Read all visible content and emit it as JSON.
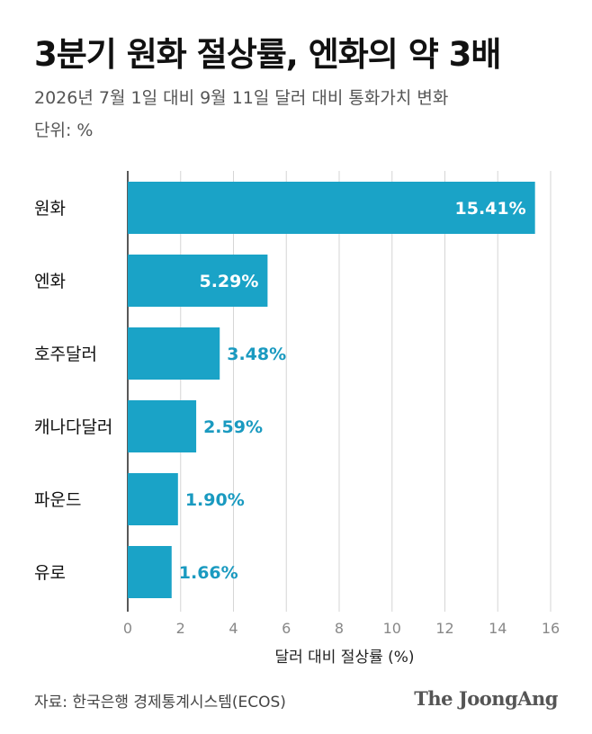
{
  "header": {
    "title": "3분기 원화 절상률, 엔화의 약 3배",
    "subtitle": "2026년 7월 1일 대비 9월 11일 달러 대비 통화가치 변화",
    "unit": "단위: %"
  },
  "chart_data": {
    "type": "bar",
    "orientation": "horizontal",
    "categories": [
      "원화",
      "엔화",
      "호주달러",
      "캐나다달러",
      "파운드",
      "유로"
    ],
    "values": [
      15.41,
      5.29,
      3.48,
      2.59,
      1.9,
      1.66
    ],
    "value_labels": [
      "15.41%",
      "5.29%",
      "3.48%",
      "2.59%",
      "1.90%",
      "1.66%"
    ],
    "xlabel": "달러 대비 절상률 (%)",
    "xlim": [
      0,
      16
    ],
    "xticks": [
      "0",
      "2",
      "4",
      "6",
      "8",
      "10",
      "12",
      "14",
      "16"
    ],
    "grid": true,
    "bar_color": "#1aa3c7",
    "label_color": "#1a9ac0",
    "label_color_inside": "#ffffff"
  },
  "footer": {
    "source": "자료: 한국은행 경제통계시스템(ECOS)",
    "logo": "The JoongAng"
  }
}
